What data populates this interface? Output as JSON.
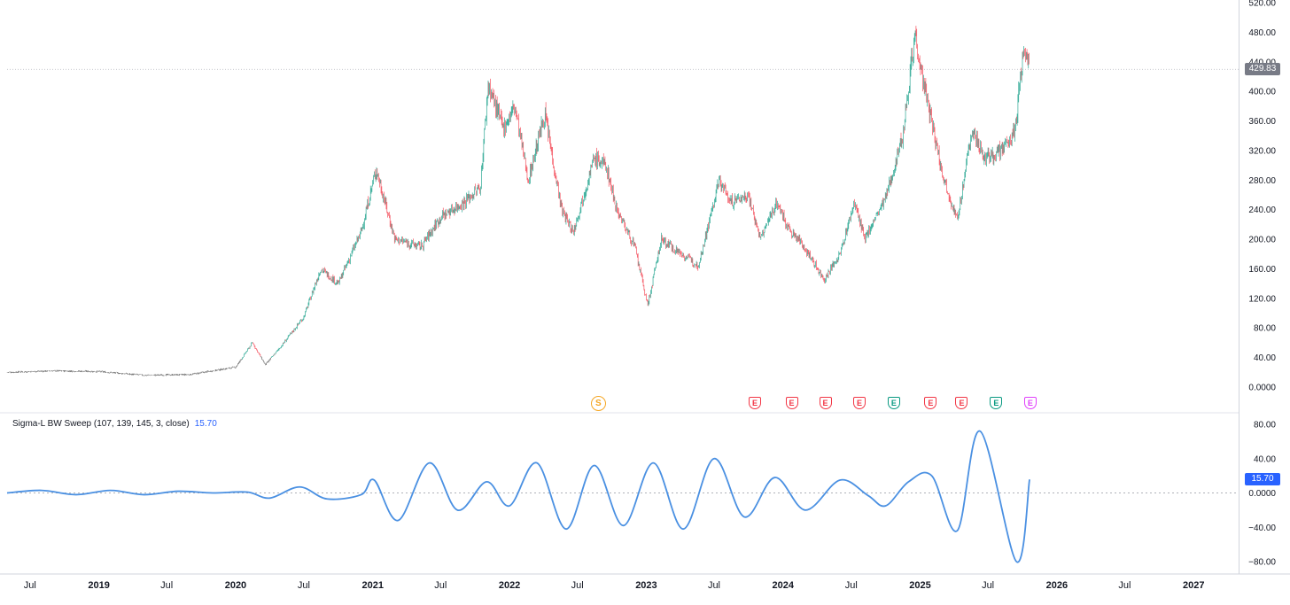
{
  "colors": {
    "up": "#089981",
    "down": "#f23645",
    "indicator_line": "#4a90e2",
    "price_badge_bg": "#787b86",
    "indicator_badge_bg": "#2962ff",
    "grid": "#e0e3eb",
    "earnings_red": "#f23645",
    "earnings_green": "#089981",
    "split_orange": "#f5a623",
    "purple": "#b13bff",
    "magenta": "#e040fb"
  },
  "price_axis": {
    "ticks": [
      "520.00",
      "480.00",
      "440.00",
      "400.00",
      "360.00",
      "320.00",
      "280.00",
      "240.00",
      "200.00",
      "160.00",
      "120.00",
      "80.00",
      "40.00",
      "0.0000"
    ],
    "last_price_label": "429.83"
  },
  "indicator": {
    "title": "Sigma-L BW Sweep (107, 139, 145, 3, close)",
    "value_label": "15.70",
    "axis_ticks": [
      "80.00",
      "40.00",
      "0.0000",
      "−40.00",
      "−80.00"
    ]
  },
  "time_axis": {
    "labels": [
      {
        "text": "Jul",
        "bold": false
      },
      {
        "text": "2019",
        "bold": true
      },
      {
        "text": "Jul",
        "bold": false
      },
      {
        "text": "2020",
        "bold": true
      },
      {
        "text": "Jul",
        "bold": false
      },
      {
        "text": "2021",
        "bold": true
      },
      {
        "text": "Jul",
        "bold": false
      },
      {
        "text": "2022",
        "bold": true
      },
      {
        "text": "Jul",
        "bold": false
      },
      {
        "text": "2023",
        "bold": true
      },
      {
        "text": "Jul",
        "bold": false
      },
      {
        "text": "2024",
        "bold": true
      },
      {
        "text": "Jul",
        "bold": false
      },
      {
        "text": "2025",
        "bold": true
      },
      {
        "text": "Jul",
        "bold": false
      },
      {
        "text": "2026",
        "bold": true
      },
      {
        "text": "Jul",
        "bold": false
      },
      {
        "text": "2027",
        "bold": true
      }
    ]
  },
  "events": [
    {
      "type": "split",
      "label": "S",
      "date": "2022-08-25"
    },
    {
      "type": "earnings",
      "label": "E",
      "tone": "red",
      "date": "2023-10-18"
    },
    {
      "type": "earnings",
      "label": "E",
      "tone": "red",
      "date": "2024-01-24"
    },
    {
      "type": "earnings",
      "label": "E",
      "tone": "red",
      "date": "2024-04-23"
    },
    {
      "type": "earnings",
      "label": "E",
      "tone": "red",
      "date": "2024-07-23"
    },
    {
      "type": "earnings",
      "label": "E",
      "tone": "green",
      "date": "2024-10-23"
    },
    {
      "type": "earnings",
      "label": "E",
      "tone": "red",
      "date": "2025-01-29"
    },
    {
      "type": "earnings",
      "label": "E",
      "tone": "red",
      "date": "2025-04-22"
    },
    {
      "type": "earnings",
      "label": "E",
      "tone": "green",
      "date": "2025-07-23"
    },
    {
      "type": "earnings",
      "label": "E",
      "tone": "magenta",
      "date": "2025-10-22"
    }
  ],
  "chart_data": [
    {
      "type": "candlestick",
      "xlim": [
        "2018-05-01",
        "2027-05-01"
      ],
      "ylim": [
        -20,
        525
      ],
      "last_price": 429.83,
      "close_series": [
        [
          "2018-05-01",
          20
        ],
        [
          "2018-09-01",
          22
        ],
        [
          "2019-01-01",
          21
        ],
        [
          "2019-05-01",
          16
        ],
        [
          "2019-09-01",
          17
        ],
        [
          "2020-01-01",
          27
        ],
        [
          "2020-02-15",
          60
        ],
        [
          "2020-03-20",
          30
        ],
        [
          "2020-05-01",
          55
        ],
        [
          "2020-07-01",
          95
        ],
        [
          "2020-08-15",
          160
        ],
        [
          "2020-10-01",
          140
        ],
        [
          "2020-12-01",
          210
        ],
        [
          "2021-01-10",
          295
        ],
        [
          "2021-03-01",
          200
        ],
        [
          "2021-05-10",
          190
        ],
        [
          "2021-07-01",
          230
        ],
        [
          "2021-09-01",
          250
        ],
        [
          "2021-10-15",
          270
        ],
        [
          "2021-11-05",
          410
        ],
        [
          "2021-12-15",
          350
        ],
        [
          "2022-01-15",
          380
        ],
        [
          "2022-02-20",
          280
        ],
        [
          "2022-04-05",
          370
        ],
        [
          "2022-05-20",
          240
        ],
        [
          "2022-06-20",
          210
        ],
        [
          "2022-08-15",
          310
        ],
        [
          "2022-09-15",
          300
        ],
        [
          "2022-10-15",
          240
        ],
        [
          "2022-12-01",
          190
        ],
        [
          "2023-01-05",
          110
        ],
        [
          "2023-02-10",
          200
        ],
        [
          "2023-04-05",
          180
        ],
        [
          "2023-05-20",
          165
        ],
        [
          "2023-07-15",
          280
        ],
        [
          "2023-08-15",
          250
        ],
        [
          "2023-10-01",
          260
        ],
        [
          "2023-11-01",
          200
        ],
        [
          "2023-12-15",
          250
        ],
        [
          "2024-01-20",
          210
        ],
        [
          "2024-02-20",
          195
        ],
        [
          "2024-04-20",
          145
        ],
        [
          "2024-06-01",
          180
        ],
        [
          "2024-07-10",
          250
        ],
        [
          "2024-08-05",
          200
        ],
        [
          "2024-10-01",
          255
        ],
        [
          "2024-11-15",
          340
        ],
        [
          "2024-12-18",
          480
        ],
        [
          "2025-01-10",
          410
        ],
        [
          "2025-03-01",
          290
        ],
        [
          "2025-04-10",
          225
        ],
        [
          "2025-05-20",
          350
        ],
        [
          "2025-06-20",
          310
        ],
        [
          "2025-08-10",
          320
        ],
        [
          "2025-09-10",
          345
        ],
        [
          "2025-10-05",
          460
        ],
        [
          "2025-10-20",
          430
        ]
      ]
    },
    {
      "type": "line",
      "name": "Sigma-L BW Sweep (107, 139, 145, 3, close)",
      "ylim": [
        -92,
        92
      ],
      "last_value": 15.7,
      "series": [
        [
          "2018-05-01",
          0
        ],
        [
          "2018-08-01",
          3
        ],
        [
          "2018-11-01",
          -2
        ],
        [
          "2019-02-01",
          3
        ],
        [
          "2019-05-01",
          -2
        ],
        [
          "2019-08-01",
          2
        ],
        [
          "2019-11-01",
          0
        ],
        [
          "2020-02-01",
          1
        ],
        [
          "2020-04-01",
          -6
        ],
        [
          "2020-06-20",
          7
        ],
        [
          "2020-09-01",
          -7
        ],
        [
          "2020-12-01",
          -2
        ],
        [
          "2021-01-05",
          15
        ],
        [
          "2021-03-10",
          -32
        ],
        [
          "2021-06-01",
          35
        ],
        [
          "2021-08-15",
          -20
        ],
        [
          "2021-11-01",
          13
        ],
        [
          "2022-01-01",
          -15
        ],
        [
          "2022-03-15",
          35
        ],
        [
          "2022-06-01",
          -42
        ],
        [
          "2022-08-15",
          32
        ],
        [
          "2022-11-01",
          -38
        ],
        [
          "2023-01-20",
          35
        ],
        [
          "2023-04-10",
          -42
        ],
        [
          "2023-07-01",
          40
        ],
        [
          "2023-09-20",
          -28
        ],
        [
          "2023-12-10",
          18
        ],
        [
          "2024-03-01",
          -20
        ],
        [
          "2024-06-01",
          15
        ],
        [
          "2024-08-15",
          -3
        ],
        [
          "2024-10-01",
          -15
        ],
        [
          "2024-12-01",
          13
        ],
        [
          "2025-02-01",
          20
        ],
        [
          "2025-04-10",
          -44
        ],
        [
          "2025-06-10",
          72
        ],
        [
          "2025-09-15",
          -80
        ],
        [
          "2025-10-20",
          15.7
        ]
      ]
    }
  ]
}
